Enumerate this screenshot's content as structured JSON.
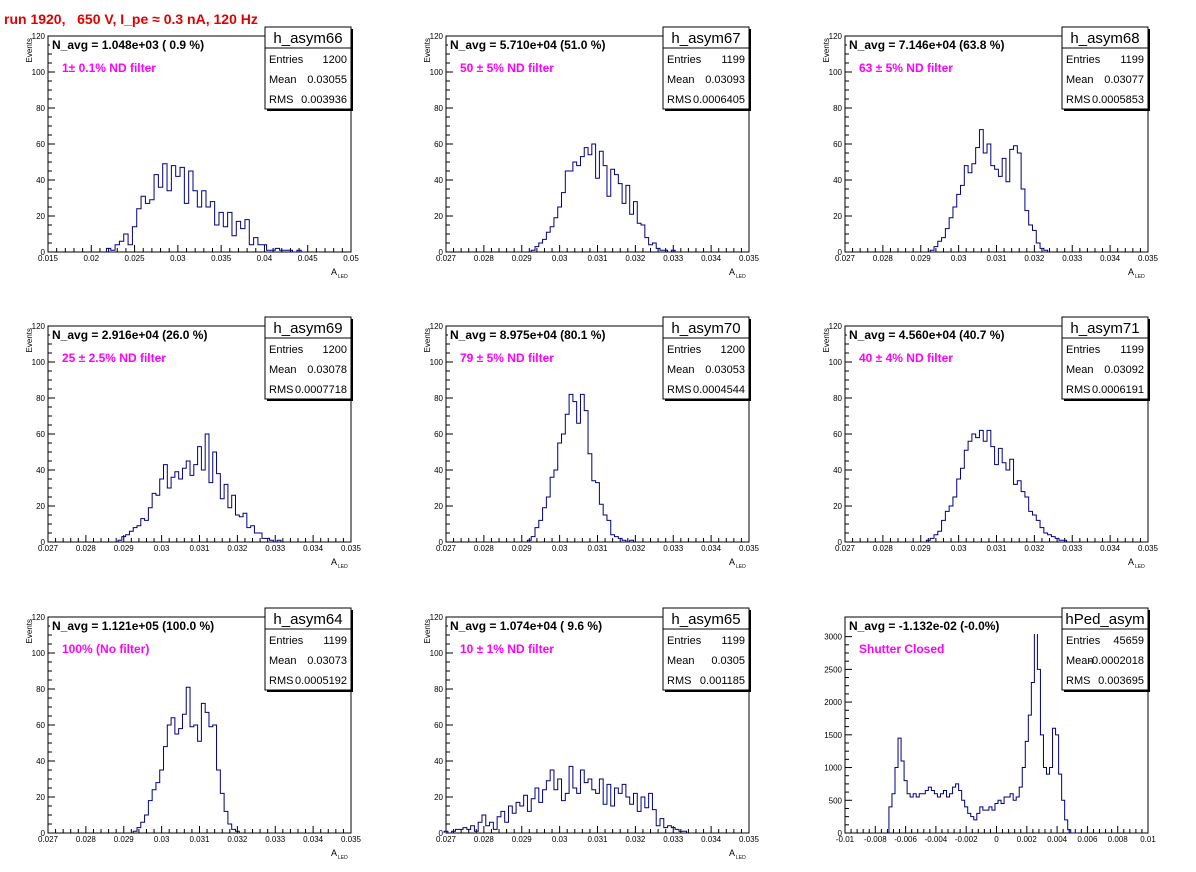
{
  "header": {
    "run_title": "run 1920,   650 V, I_pe ≈ 0.3 nA, 120 Hz"
  },
  "colors": {
    "histogram": "#000080",
    "filter_label": "#ff00ff",
    "title": "#e00000",
    "axis": "#000000"
  },
  "chart_data": [
    {
      "type": "bar",
      "name": "h_asym66",
      "ylabel": "Events",
      "xlabel_main": "A",
      "xlabel_sub": "LED",
      "xlim": [
        0.015,
        0.05
      ],
      "ylim": [
        0,
        120
      ],
      "xticks": [
        "0.015",
        "0.02",
        "0.025",
        "0.03",
        "0.035",
        "0.04",
        "0.045",
        "0.05"
      ],
      "yticks": [
        "0",
        "20",
        "40",
        "60",
        "80",
        "100",
        "120"
      ],
      "navg": "N_avg = 1.048e+03 ( 0.9 %)",
      "filter": "1± 0.1% ND filter",
      "stats": {
        "title": "h_asym66",
        "entries": "1200",
        "mean": "0.03055",
        "rms": "0.003936"
      },
      "x": [
        0.022,
        0.0225,
        0.023,
        0.0235,
        0.024,
        0.0245,
        0.025,
        0.0255,
        0.026,
        0.0265,
        0.027,
        0.0275,
        0.028,
        0.0285,
        0.029,
        0.0295,
        0.03,
        0.0305,
        0.031,
        0.0315,
        0.032,
        0.0325,
        0.033,
        0.0335,
        0.034,
        0.0345,
        0.035,
        0.0355,
        0.036,
        0.0365,
        0.037,
        0.0375,
        0.038,
        0.0385,
        0.039,
        0.0395,
        0.04,
        0.0405,
        0.041,
        0.0415,
        0.042,
        0.0425,
        0.043,
        0.0435,
        0.044,
        0.0445
      ],
      "values": [
        2,
        1,
        4,
        6,
        10,
        4,
        14,
        24,
        31,
        27,
        29,
        43,
        36,
        49,
        34,
        48,
        42,
        47,
        27,
        45,
        34,
        25,
        34,
        25,
        28,
        15,
        22,
        14,
        22,
        9,
        17,
        13,
        18,
        4,
        8,
        4,
        4,
        1,
        1,
        2,
        1,
        1,
        1,
        0,
        1,
        0
      ]
    },
    {
      "type": "bar",
      "name": "h_asym67",
      "ylabel": "Events",
      "xlabel_main": "A",
      "xlabel_sub": "LED",
      "xlim": [
        0.027,
        0.035
      ],
      "ylim": [
        0,
        120
      ],
      "xticks": [
        "0.027",
        "0.028",
        "0.029",
        "0.03",
        "0.031",
        "0.032",
        "0.033",
        "0.034",
        "0.035"
      ],
      "yticks": [
        "0",
        "20",
        "40",
        "60",
        "80",
        "100",
        "120"
      ],
      "navg": "N_avg = 5.710e+04 (51.0 %)",
      "filter": "50 ± 5% ND filter",
      "stats": {
        "title": "h_asym67",
        "entries": "1199",
        "mean": "0.03093",
        "rms": "0.0006405"
      },
      "x": [
        0.0293,
        0.0294,
        0.0295,
        0.0296,
        0.0297,
        0.0298,
        0.0299,
        0.03,
        0.0301,
        0.0302,
        0.0303,
        0.0304,
        0.0305,
        0.0306,
        0.0307,
        0.0308,
        0.0309,
        0.031,
        0.0311,
        0.0312,
        0.0313,
        0.0314,
        0.0315,
        0.0316,
        0.0317,
        0.0318,
        0.0319,
        0.032,
        0.0321,
        0.0322,
        0.0323,
        0.0324,
        0.0325,
        0.0326,
        0.0327,
        0.0328,
        0.0329,
        0.033
      ],
      "values": [
        1,
        3,
        5,
        7,
        11,
        14,
        19,
        25,
        33,
        45,
        45,
        50,
        48,
        53,
        58,
        54,
        60,
        41,
        56,
        48,
        31,
        46,
        43,
        38,
        27,
        37,
        21,
        28,
        16,
        15,
        8,
        4,
        5,
        2,
        1,
        1,
        0,
        1
      ]
    },
    {
      "type": "bar",
      "name": "h_asym68",
      "ylabel": "Events",
      "xlabel_main": "A",
      "xlabel_sub": "LED",
      "xlim": [
        0.027,
        0.035
      ],
      "ylim": [
        0,
        120
      ],
      "xticks": [
        "0.027",
        "0.028",
        "0.029",
        "0.03",
        "0.031",
        "0.032",
        "0.033",
        "0.034",
        "0.035"
      ],
      "yticks": [
        "0",
        "20",
        "40",
        "60",
        "80",
        "100",
        "120"
      ],
      "navg": "N_avg = 7.146e+04 (63.8 %)",
      "filter": "63 ± 5% ND filter",
      "stats": {
        "title": "h_asym68",
        "entries": "1199",
        "mean": "0.03077",
        "rms": "0.0005853"
      },
      "x": [
        0.0293,
        0.0294,
        0.0295,
        0.0296,
        0.0297,
        0.0298,
        0.0299,
        0.03,
        0.0301,
        0.0302,
        0.0303,
        0.0304,
        0.0305,
        0.0306,
        0.0307,
        0.0308,
        0.0309,
        0.031,
        0.0311,
        0.0312,
        0.0313,
        0.0314,
        0.0315,
        0.0316,
        0.0317,
        0.0318,
        0.0319,
        0.032,
        0.0321,
        0.0322,
        0.0323
      ],
      "values": [
        1,
        3,
        6,
        8,
        13,
        19,
        25,
        32,
        37,
        48,
        44,
        49,
        58,
        68,
        55,
        60,
        48,
        46,
        42,
        52,
        39,
        57,
        59,
        55,
        35,
        23,
        15,
        12,
        5,
        2,
        1
      ]
    },
    {
      "type": "bar",
      "name": "h_asym69",
      "ylabel": "Events",
      "xlabel_main": "A",
      "xlabel_sub": "LED",
      "xlim": [
        0.027,
        0.035
      ],
      "ylim": [
        0,
        120
      ],
      "xticks": [
        "0.027",
        "0.028",
        "0.029",
        "0.03",
        "0.031",
        "0.032",
        "0.033",
        "0.034",
        "0.035"
      ],
      "yticks": [
        "0",
        "20",
        "40",
        "60",
        "80",
        "100",
        "120"
      ],
      "navg": "N_avg = 2.916e+04 (26.0 %)",
      "filter": "25 ± 2.5% ND filter",
      "stats": {
        "title": "h_asym69",
        "entries": "1200",
        "mean": "0.03078",
        "rms": "0.0007718"
      },
      "x": [
        0.0289,
        0.029,
        0.0291,
        0.0292,
        0.0293,
        0.0294,
        0.0295,
        0.0296,
        0.0297,
        0.0298,
        0.0299,
        0.03,
        0.0301,
        0.0302,
        0.0303,
        0.0304,
        0.0305,
        0.0306,
        0.0307,
        0.0308,
        0.0309,
        0.031,
        0.0311,
        0.0312,
        0.0313,
        0.0314,
        0.0315,
        0.0316,
        0.0317,
        0.0318,
        0.0319,
        0.032,
        0.0321,
        0.0322,
        0.0323,
        0.0324,
        0.0325,
        0.0326,
        0.0327,
        0.0328,
        0.0329,
        0.033,
        0.0331
      ],
      "values": [
        1,
        3,
        4,
        6,
        8,
        9,
        13,
        12,
        19,
        27,
        26,
        35,
        43,
        30,
        36,
        39,
        35,
        41,
        45,
        37,
        43,
        53,
        40,
        60,
        33,
        50,
        38,
        24,
        32,
        19,
        26,
        15,
        14,
        16,
        8,
        9,
        5,
        5,
        2,
        2,
        1,
        0,
        1
      ]
    },
    {
      "type": "bar",
      "name": "h_asym70",
      "ylabel": "Events",
      "xlabel_main": "A",
      "xlabel_sub": "LED",
      "xlim": [
        0.027,
        0.035
      ],
      "ylim": [
        0,
        120
      ],
      "xticks": [
        "0.027",
        "0.028",
        "0.029",
        "0.03",
        "0.031",
        "0.032",
        "0.033",
        "0.034",
        "0.035"
      ],
      "yticks": [
        "0",
        "20",
        "40",
        "60",
        "80",
        "100",
        "120"
      ],
      "navg": "N_avg = 8.975e+04 (80.1 %)",
      "filter": "79 ± 5% ND filter",
      "stats": {
        "title": "h_asym70",
        "entries": "1200",
        "mean": "0.03053",
        "rms": "0.0004544"
      },
      "x": [
        0.0292,
        0.0293,
        0.0294,
        0.0295,
        0.0296,
        0.0297,
        0.0298,
        0.0299,
        0.03,
        0.0301,
        0.0302,
        0.0303,
        0.0304,
        0.0305,
        0.0306,
        0.0307,
        0.0308,
        0.0309,
        0.031,
        0.0311,
        0.0312,
        0.0313,
        0.0314,
        0.0315,
        0.0316,
        0.0317,
        0.0318,
        0.0319
      ],
      "values": [
        1,
        3,
        8,
        12,
        19,
        25,
        36,
        40,
        55,
        60,
        71,
        82,
        78,
        66,
        82,
        73,
        49,
        34,
        33,
        21,
        15,
        12,
        4,
        3,
        2,
        1,
        0,
        1
      ]
    },
    {
      "type": "bar",
      "name": "h_asym71",
      "ylabel": "Events",
      "xlabel_main": "A",
      "xlabel_sub": "LED",
      "xlim": [
        0.027,
        0.035
      ],
      "ylim": [
        0,
        120
      ],
      "xticks": [
        "0.027",
        "0.028",
        "0.029",
        "0.03",
        "0.031",
        "0.032",
        "0.033",
        "0.034",
        "0.035"
      ],
      "yticks": [
        "0",
        "20",
        "40",
        "60",
        "80",
        "100",
        "120"
      ],
      "navg": "N_avg = 4.560e+04 (40.7 %)",
      "filter": "40 ± 4% ND filter",
      "stats": {
        "title": "h_asym71",
        "entries": "1199",
        "mean": "0.03092",
        "rms": "0.0006191"
      },
      "x": [
        0.0292,
        0.0293,
        0.0294,
        0.0295,
        0.0296,
        0.0297,
        0.0298,
        0.0299,
        0.03,
        0.0301,
        0.0302,
        0.0303,
        0.0304,
        0.0305,
        0.0306,
        0.0307,
        0.0308,
        0.0309,
        0.031,
        0.0311,
        0.0312,
        0.0313,
        0.0314,
        0.0315,
        0.0316,
        0.0317,
        0.0318,
        0.0319,
        0.032,
        0.0321,
        0.0322,
        0.0323,
        0.0324,
        0.0325,
        0.0326,
        0.0327,
        0.0328
      ],
      "values": [
        1,
        2,
        4,
        6,
        12,
        17,
        20,
        25,
        35,
        41,
        51,
        56,
        60,
        58,
        62,
        56,
        62,
        53,
        43,
        52,
        44,
        40,
        46,
        32,
        34,
        28,
        25,
        17,
        15,
        12,
        8,
        5,
        4,
        3,
        2,
        1,
        1
      ]
    },
    {
      "type": "bar",
      "name": "h_asym64",
      "ylabel": "Events",
      "xlabel_main": "A",
      "xlabel_sub": "LED",
      "xlim": [
        0.027,
        0.035
      ],
      "ylim": [
        0,
        120
      ],
      "xticks": [
        "0.027",
        "0.028",
        "0.029",
        "0.03",
        "0.031",
        "0.032",
        "0.033",
        "0.034",
        "0.035"
      ],
      "yticks": [
        "0",
        "20",
        "40",
        "60",
        "80",
        "100",
        "120"
      ],
      "navg": "N_avg = 1.121e+05 (100.0 %)",
      "filter": "100% (No filter)",
      "stats": {
        "title": "h_asym64",
        "entries": "1199",
        "mean": "0.03073",
        "rms": "0.0005192"
      },
      "x": [
        0.0293,
        0.0294,
        0.0295,
        0.0296,
        0.0297,
        0.0298,
        0.0299,
        0.03,
        0.0301,
        0.0302,
        0.0303,
        0.0304,
        0.0305,
        0.0306,
        0.0307,
        0.0308,
        0.0309,
        0.031,
        0.0311,
        0.0312,
        0.0313,
        0.0314,
        0.0315,
        0.0316,
        0.0317,
        0.0318,
        0.0319,
        0.032
      ],
      "values": [
        1,
        3,
        6,
        10,
        18,
        24,
        28,
        35,
        48,
        60,
        64,
        55,
        58,
        66,
        81,
        59,
        60,
        51,
        72,
        67,
        59,
        60,
        35,
        22,
        12,
        5,
        2,
        1
      ]
    },
    {
      "type": "bar",
      "name": "h_asym65",
      "ylabel": "Events",
      "xlabel_main": "A",
      "xlabel_sub": "LED",
      "xlim": [
        0.027,
        0.035
      ],
      "ylim": [
        0,
        120
      ],
      "xticks": [
        "0.027",
        "0.028",
        "0.029",
        "0.03",
        "0.031",
        "0.032",
        "0.033",
        "0.034",
        "0.035"
      ],
      "yticks": [
        "0",
        "20",
        "40",
        "60",
        "80",
        "100",
        "120"
      ],
      "navg": "N_avg = 1.074e+04 ( 9.6 %)",
      "filter": "10 ± 1% ND filter",
      "stats": {
        "title": "h_asym65",
        "entries": "1199",
        "mean": "0.0305",
        "rms": "0.001185"
      },
      "x": [
        0.027,
        0.0271,
        0.0272,
        0.0273,
        0.0274,
        0.0275,
        0.0276,
        0.0277,
        0.0278,
        0.0279,
        0.028,
        0.0281,
        0.0282,
        0.0283,
        0.0284,
        0.0285,
        0.0286,
        0.0287,
        0.0288,
        0.0289,
        0.029,
        0.0291,
        0.0292,
        0.0293,
        0.0294,
        0.0295,
        0.0296,
        0.0297,
        0.0298,
        0.0299,
        0.03,
        0.0301,
        0.0302,
        0.0303,
        0.0304,
        0.0305,
        0.0306,
        0.0307,
        0.0308,
        0.0309,
        0.031,
        0.0311,
        0.0312,
        0.0313,
        0.0314,
        0.0315,
        0.0316,
        0.0317,
        0.0318,
        0.0319,
        0.032,
        0.0321,
        0.0322,
        0.0323,
        0.0324,
        0.0325,
        0.0326,
        0.0327,
        0.0328,
        0.0329,
        0.033,
        0.0331,
        0.0332,
        0.0333
      ],
      "values": [
        1,
        0,
        1,
        2,
        2,
        3,
        2,
        4,
        1,
        6,
        10,
        4,
        6,
        2,
        9,
        12,
        6,
        15,
        11,
        17,
        15,
        21,
        12,
        19,
        25,
        17,
        24,
        29,
        35,
        24,
        30,
        18,
        22,
        37,
        25,
        22,
        35,
        28,
        30,
        24,
        22,
        30,
        16,
        27,
        15,
        25,
        22,
        27,
        20,
        16,
        22,
        12,
        20,
        14,
        22,
        13,
        4,
        8,
        3,
        4,
        3,
        2,
        1,
        1
      ]
    },
    {
      "type": "bar",
      "name": "hPed_asym",
      "ylabel": "",
      "xlabel_main": "",
      "xlabel_sub": "",
      "xlim": [
        -0.01,
        0.01
      ],
      "ylim": [
        0,
        3300
      ],
      "xticks": [
        "-0.01",
        "-0.008",
        "-0.006",
        "-0.004",
        "-0.002",
        "0",
        "0.002",
        "0.004",
        "0.006",
        "0.008",
        "0.01"
      ],
      "yticks": [
        "0",
        "500",
        "1000",
        "1500",
        "2000",
        "2500",
        "3000"
      ],
      "navg": "N_avg = -1.132e-02 (-0.0%)",
      "filter": "Shutter Closed",
      "stats": {
        "title": "hPed_asym",
        "entries": "45659",
        "mean": "-0.0002018",
        "rms": "0.003695"
      },
      "x": [
        -0.007,
        -0.0068,
        -0.0066,
        -0.0064,
        -0.0062,
        -0.006,
        -0.0058,
        -0.0056,
        -0.0054,
        -0.0052,
        -0.005,
        -0.0048,
        -0.0046,
        -0.0044,
        -0.0042,
        -0.004,
        -0.0038,
        -0.0036,
        -0.0034,
        -0.0032,
        -0.003,
        -0.0028,
        -0.0026,
        -0.0024,
        -0.0022,
        -0.002,
        -0.0018,
        -0.0016,
        -0.0014,
        -0.0012,
        -0.001,
        -0.0008,
        -0.0006,
        -0.0004,
        -0.0002,
        0.0,
        0.0002,
        0.0004,
        0.0006,
        0.0008,
        0.001,
        0.0012,
        0.0014,
        0.0016,
        0.0018,
        0.002,
        0.0022,
        0.0024,
        0.0026,
        0.0028,
        0.003,
        0.0032,
        0.0034,
        0.0036,
        0.0038,
        0.004,
        0.0042,
        0.0044,
        0.0046,
        0.0048,
        0.005,
        0.0052
      ],
      "values": [
        400,
        600,
        1000,
        1450,
        1100,
        800,
        600,
        550,
        600,
        550,
        600,
        600,
        650,
        700,
        650,
        600,
        550,
        600,
        650,
        550,
        600,
        700,
        750,
        650,
        500,
        400,
        300,
        250,
        200,
        300,
        400,
        350,
        350,
        400,
        350,
        450,
        500,
        450,
        550,
        550,
        600,
        500,
        550,
        700,
        1000,
        1400,
        1800,
        2300,
        3250,
        2500,
        1500,
        1000,
        900,
        1000,
        1600,
        1500,
        900,
        500,
        200,
        50,
        0,
        0
      ]
    }
  ]
}
